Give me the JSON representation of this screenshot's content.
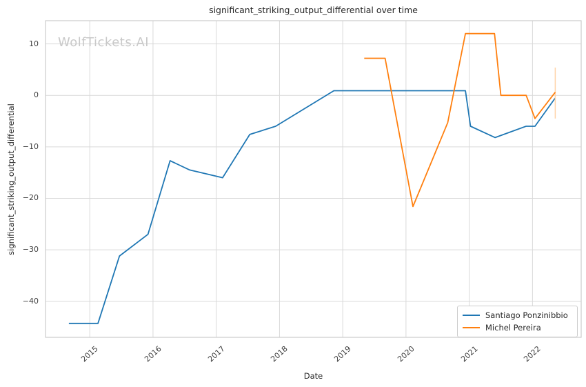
{
  "watermark": "WolfTickets.AI",
  "chart_data": {
    "type": "line",
    "title": "significant_striking_output_differential over time",
    "xlabel": "Date",
    "ylabel": "significant_striking_output_differential",
    "xlim": [
      2014.3,
      2022.77
    ],
    "ylim": [
      -47,
      14.5
    ],
    "grid": true,
    "legend_position": "lower right",
    "x_ticks": [
      {
        "value": 2015,
        "label": "2015"
      },
      {
        "value": 2016,
        "label": "2016"
      },
      {
        "value": 2017,
        "label": "2017"
      },
      {
        "value": 2018,
        "label": "2018"
      },
      {
        "value": 2019,
        "label": "2019"
      },
      {
        "value": 2020,
        "label": "2020"
      },
      {
        "value": 2021,
        "label": "2021"
      },
      {
        "value": 2022,
        "label": "2022"
      }
    ],
    "y_ticks": [
      {
        "value": 10,
        "label": "10"
      },
      {
        "value": 0,
        "label": "0"
      },
      {
        "value": -10,
        "label": "−10"
      },
      {
        "value": -20,
        "label": "−20"
      },
      {
        "value": -30,
        "label": "−30"
      },
      {
        "value": -40,
        "label": "−40"
      }
    ],
    "series": [
      {
        "name": "Santiago Ponzinibbio",
        "color": "#1f77b4",
        "points": [
          [
            2014.67,
            -44.3
          ],
          [
            2015.13,
            -44.3
          ],
          [
            2015.47,
            -31.2
          ],
          [
            2015.92,
            -27.0
          ],
          [
            2016.27,
            -12.7
          ],
          [
            2016.58,
            -14.5
          ],
          [
            2017.1,
            -16.0
          ],
          [
            2017.53,
            -7.6
          ],
          [
            2017.94,
            -6.0
          ],
          [
            2018.86,
            0.9
          ],
          [
            2020.94,
            0.9
          ],
          [
            2021.02,
            -6.0
          ],
          [
            2021.41,
            -8.2
          ],
          [
            2021.9,
            -6.0
          ],
          [
            2022.04,
            -6.0
          ],
          [
            2022.36,
            -0.5
          ]
        ]
      },
      {
        "name": "Michel Pereira",
        "color": "#ff7f0e",
        "points": [
          [
            2019.34,
            7.2
          ],
          [
            2019.67,
            7.2
          ],
          [
            2020.11,
            -21.6
          ],
          [
            2020.66,
            -5.3
          ],
          [
            2020.94,
            12.0
          ],
          [
            2021.4,
            12.0
          ],
          [
            2021.5,
            0.0
          ],
          [
            2021.9,
            0.0
          ],
          [
            2022.04,
            -4.5
          ],
          [
            2022.36,
            0.6
          ]
        ],
        "error_bar": {
          "x": 2022.36,
          "y_low": -4.5,
          "y_high": 5.4
        }
      }
    ],
    "colors": {
      "grid": "#d9d9d9",
      "border": "#cccccc",
      "error_bar": "#ffd3a8"
    }
  }
}
